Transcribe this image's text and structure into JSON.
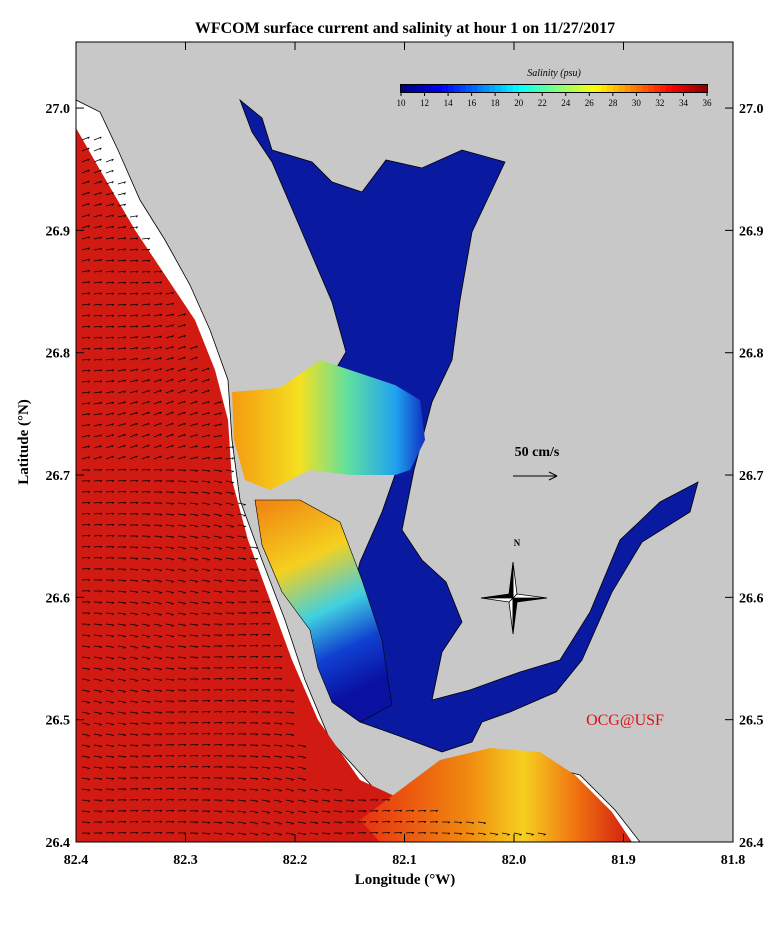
{
  "map": {
    "title": "WFCOM surface current and salinity at hour 1 on 11/27/2017",
    "x_label": "Longitude (°W)",
    "y_label": "Latitude (°N)",
    "xlim": [
      82.4,
      81.8
    ],
    "ylim": [
      26.4,
      27.054
    ],
    "xticks": [
      82.4,
      82.3,
      82.2,
      82.1,
      {
        "value": 82,
        "label": "82.0"
      },
      81.9,
      81.8
    ],
    "yticks": [
      26.4,
      26.5,
      26.6,
      26.7,
      26.8,
      26.9,
      {
        "value": 27,
        "label": "27.0"
      }
    ],
    "colorbar": {
      "label": "Salinity (psu)",
      "range": [
        10,
        36
      ],
      "ticks": [
        10,
        12,
        14,
        16,
        18,
        20,
        22,
        24,
        26,
        28,
        30,
        32,
        34,
        36
      ]
    },
    "scale_label": "50 cm/s",
    "compass": "N",
    "credit": "OCG@USF"
  }
}
